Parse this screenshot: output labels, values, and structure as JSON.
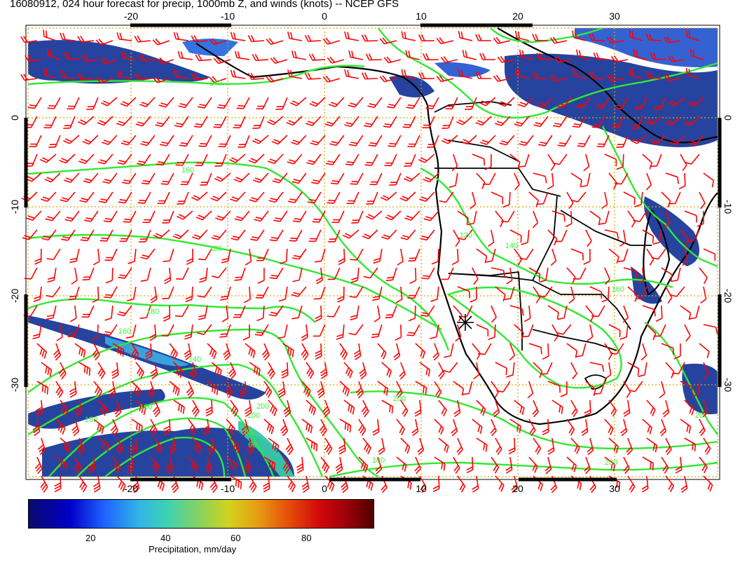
{
  "title": "16080912, 024 hour forecast for precip, 1000mb Z, and winds (knots) -- NCEP GFS",
  "axes": {
    "lon_ticks": [
      "-20",
      "-10",
      "0",
      "10",
      "20",
      "30"
    ],
    "lat_ticks": [
      "0",
      "-10",
      "-20",
      "-30"
    ]
  },
  "contour_labels": [
    "140",
    "160",
    "180",
    "180",
    "160",
    "140",
    "160",
    "180",
    "200",
    "200",
    "180",
    "120",
    "140",
    "160",
    "100",
    "80",
    "60",
    "20",
    "200"
  ],
  "colorbar": {
    "title": "Precipitation, mm/day",
    "ticks": [
      "20",
      "40",
      "60",
      "80"
    ]
  },
  "colors": {
    "contour": "#33e833",
    "barb": "#ff0000",
    "coast": "#000000",
    "grid": "#d9a400"
  }
}
